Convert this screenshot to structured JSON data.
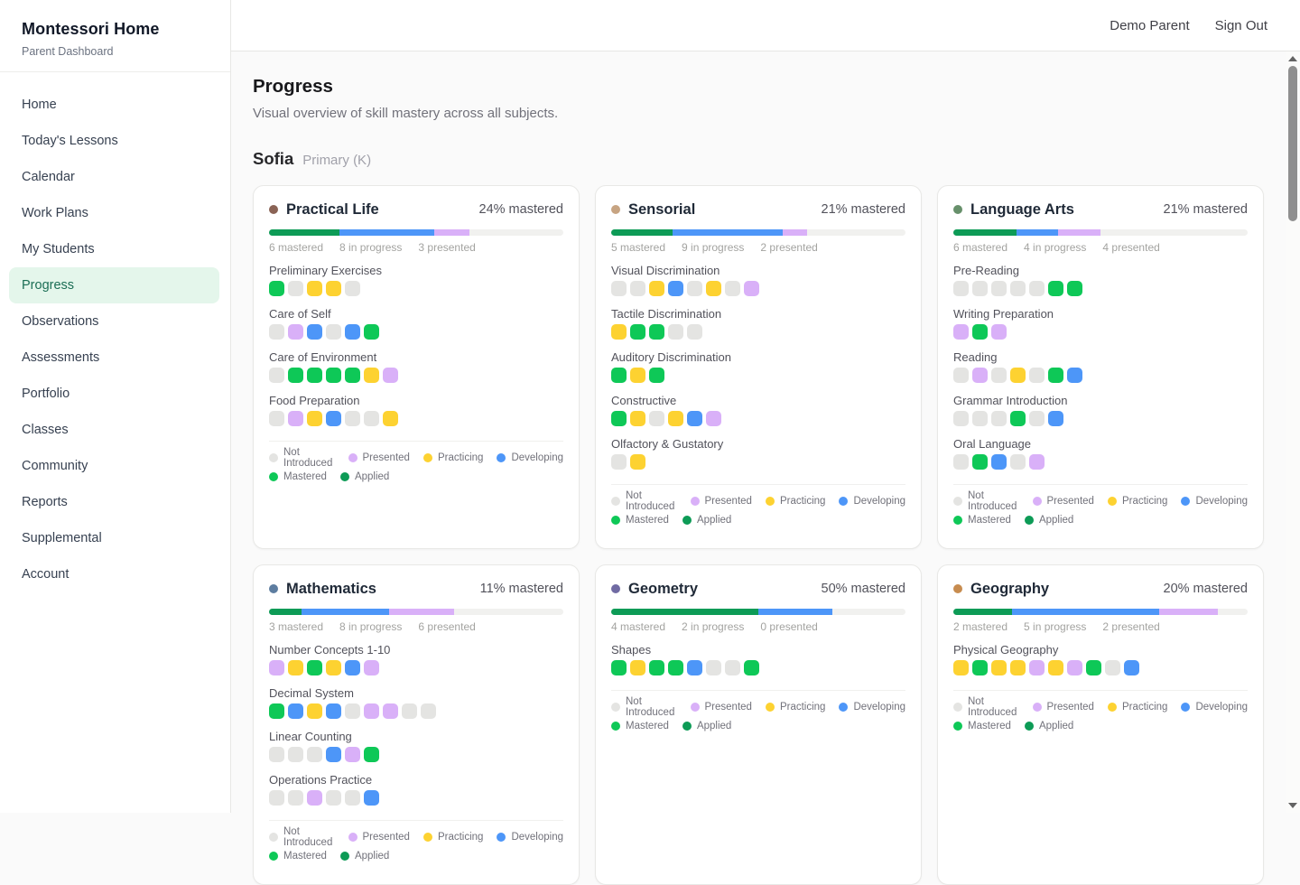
{
  "sidebar": {
    "title": "Montessori Home",
    "subtitle": "Parent Dashboard",
    "items": [
      {
        "label": "Home",
        "active": false
      },
      {
        "label": "Today's Lessons",
        "active": false
      },
      {
        "label": "Calendar",
        "active": false
      },
      {
        "label": "Work Plans",
        "active": false
      },
      {
        "label": "My Students",
        "active": false
      },
      {
        "label": "Progress",
        "active": true
      },
      {
        "label": "Observations",
        "active": false
      },
      {
        "label": "Assessments",
        "active": false
      },
      {
        "label": "Portfolio",
        "active": false
      },
      {
        "label": "Classes",
        "active": false
      },
      {
        "label": "Community",
        "active": false
      },
      {
        "label": "Reports",
        "active": false
      },
      {
        "label": "Supplemental",
        "active": false
      },
      {
        "label": "Account",
        "active": false
      }
    ]
  },
  "header": {
    "user": "Demo Parent",
    "sign_out": "Sign Out"
  },
  "page": {
    "title": "Progress",
    "subtitle": "Visual overview of skill mastery across all subjects."
  },
  "student": {
    "name": "Sofia",
    "level": "Primary (K)"
  },
  "status_colors": {
    "not_introduced": "#e4e4e2",
    "presented": "#d9b0f8",
    "practicing": "#fdd231",
    "developing": "#4d96f8",
    "mastered": "#0ec857",
    "applied": "#0d9b56"
  },
  "bar_colors": {
    "mastered": "#0d9b56",
    "in_progress": "#4d96f8",
    "presented": "#d9b0f8",
    "track": "#f1f1ef"
  },
  "legend": [
    {
      "key": "not_introduced",
      "label": "Not Introduced"
    },
    {
      "key": "presented",
      "label": "Presented"
    },
    {
      "key": "practicing",
      "label": "Practicing"
    },
    {
      "key": "developing",
      "label": "Developing"
    },
    {
      "key": "mastered",
      "label": "Mastered"
    },
    {
      "key": "applied",
      "label": "Applied"
    }
  ],
  "subjects": [
    {
      "name": "Practical Life",
      "dot_color": "#8a6355",
      "pct_label": "24% mastered",
      "stats": {
        "mastered": 6,
        "in_progress": 8,
        "presented": 3,
        "total": 25
      },
      "stats_labels": [
        "6 mastered",
        "8 in progress",
        "3 presented"
      ],
      "groups": [
        {
          "label": "Preliminary Exercises",
          "dots": [
            "mastered",
            "not_introduced",
            "practicing",
            "practicing",
            "not_introduced"
          ]
        },
        {
          "label": "Care of Self",
          "dots": [
            "not_introduced",
            "presented",
            "developing",
            "not_introduced",
            "developing",
            "mastered"
          ]
        },
        {
          "label": "Care of Environment",
          "dots": [
            "not_introduced",
            "mastered",
            "mastered",
            "mastered",
            "mastered",
            "practicing",
            "presented"
          ]
        },
        {
          "label": "Food Preparation",
          "dots": [
            "not_introduced",
            "presented",
            "practicing",
            "developing",
            "not_introduced",
            "not_introduced",
            "practicing"
          ]
        }
      ]
    },
    {
      "name": "Sensorial",
      "dot_color": "#c7a482",
      "pct_label": "21% mastered",
      "stats": {
        "mastered": 5,
        "in_progress": 9,
        "presented": 2,
        "total": 24
      },
      "stats_labels": [
        "5 mastered",
        "9 in progress",
        "2 presented"
      ],
      "groups": [
        {
          "label": "Visual Discrimination",
          "dots": [
            "not_introduced",
            "not_introduced",
            "practicing",
            "developing",
            "not_introduced",
            "practicing",
            "not_introduced",
            "presented"
          ]
        },
        {
          "label": "Tactile Discrimination",
          "dots": [
            "practicing",
            "mastered",
            "mastered",
            "not_introduced",
            "not_introduced"
          ]
        },
        {
          "label": "Auditory Discrimination",
          "dots": [
            "mastered",
            "practicing",
            "mastered"
          ]
        },
        {
          "label": "Constructive",
          "dots": [
            "mastered",
            "practicing",
            "not_introduced",
            "practicing",
            "developing",
            "presented"
          ]
        },
        {
          "label": "Olfactory & Gustatory",
          "dots": [
            "not_introduced",
            "practicing"
          ]
        }
      ]
    },
    {
      "name": "Language Arts",
      "dot_color": "#67906b",
      "pct_label": "21% mastered",
      "stats": {
        "mastered": 6,
        "in_progress": 4,
        "presented": 4,
        "total": 28
      },
      "stats_labels": [
        "6 mastered",
        "4 in progress",
        "4 presented"
      ],
      "groups": [
        {
          "label": "Pre-Reading",
          "dots": [
            "not_introduced",
            "not_introduced",
            "not_introduced",
            "not_introduced",
            "not_introduced",
            "mastered",
            "mastered"
          ]
        },
        {
          "label": "Writing Preparation",
          "dots": [
            "presented",
            "mastered",
            "presented"
          ]
        },
        {
          "label": "Reading",
          "dots": [
            "not_introduced",
            "presented",
            "not_introduced",
            "practicing",
            "not_introduced",
            "mastered",
            "developing"
          ]
        },
        {
          "label": "Grammar Introduction",
          "dots": [
            "not_introduced",
            "not_introduced",
            "not_introduced",
            "mastered",
            "not_introduced",
            "developing"
          ]
        },
        {
          "label": "Oral Language",
          "dots": [
            "not_introduced",
            "mastered",
            "developing",
            "not_introduced",
            "presented"
          ]
        }
      ]
    },
    {
      "name": "Mathematics",
      "dot_color": "#5d7da0",
      "pct_label": "11% mastered",
      "stats": {
        "mastered": 3,
        "in_progress": 8,
        "presented": 6,
        "total": 27
      },
      "stats_labels": [
        "3 mastered",
        "8 in progress",
        "6 presented"
      ],
      "groups": [
        {
          "label": "Number Concepts 1-10",
          "dots": [
            "presented",
            "practicing",
            "mastered",
            "practicing",
            "developing",
            "presented"
          ]
        },
        {
          "label": "Decimal System",
          "dots": [
            "mastered",
            "developing",
            "practicing",
            "developing",
            "not_introduced",
            "presented",
            "presented",
            "not_introduced",
            "not_introduced"
          ]
        },
        {
          "label": "Linear Counting",
          "dots": [
            "not_introduced",
            "not_introduced",
            "not_introduced",
            "developing",
            "presented",
            "mastered"
          ]
        },
        {
          "label": "Operations Practice",
          "dots": [
            "not_introduced",
            "not_introduced",
            "presented",
            "not_introduced",
            "not_introduced",
            "developing"
          ]
        }
      ]
    },
    {
      "name": "Geometry",
      "dot_color": "#706ba3",
      "pct_label": "50% mastered",
      "stats": {
        "mastered": 4,
        "in_progress": 2,
        "presented": 0,
        "total": 8
      },
      "stats_labels": [
        "4 mastered",
        "2 in progress",
        "0 presented"
      ],
      "groups": [
        {
          "label": "Shapes",
          "dots": [
            "mastered",
            "practicing",
            "mastered",
            "mastered",
            "developing",
            "not_introduced",
            "not_introduced",
            "mastered"
          ]
        }
      ]
    },
    {
      "name": "Geography",
      "dot_color": "#c78c4f",
      "pct_label": "20% mastered",
      "stats": {
        "mastered": 2,
        "in_progress": 5,
        "presented": 2,
        "total": 10
      },
      "stats_labels": [
        "2 mastered",
        "5 in progress",
        "2 presented"
      ],
      "groups": [
        {
          "label": "Physical Geography",
          "dots": [
            "practicing",
            "mastered",
            "practicing",
            "practicing",
            "presented",
            "practicing",
            "presented",
            "mastered",
            "not_introduced",
            "developing"
          ]
        }
      ]
    }
  ]
}
